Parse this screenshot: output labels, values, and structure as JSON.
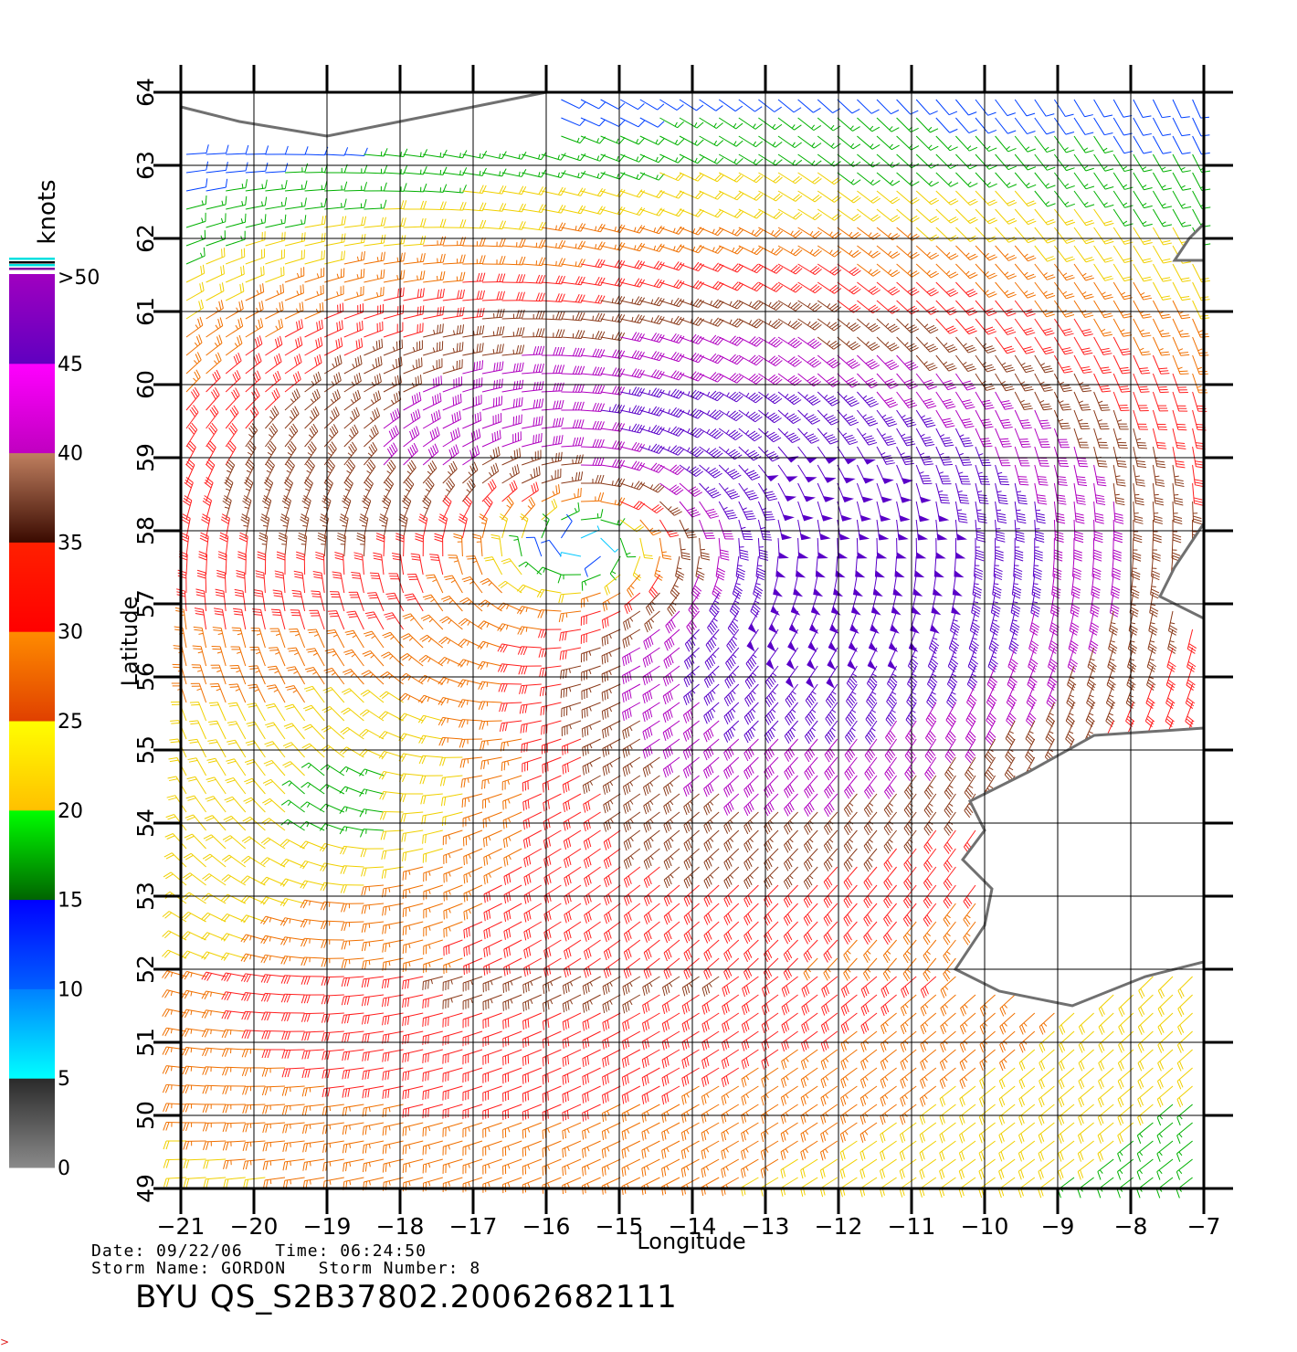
{
  "map": {
    "x_axis": {
      "label": "Longitude",
      "ticks": [
        "−21",
        "−20",
        "−19",
        "−18",
        "−17",
        "−16",
        "−15",
        "−14",
        "−13",
        "−12",
        "−11",
        "−10",
        "−9",
        "−8",
        "−7"
      ],
      "range": [
        -21,
        -7
      ]
    },
    "y_axis": {
      "label": "Latitude",
      "ticks": [
        "49",
        "50",
        "51",
        "52",
        "53",
        "54",
        "55",
        "56",
        "57",
        "58",
        "59",
        "60",
        "61",
        "62",
        "63",
        "64"
      ],
      "range": [
        49,
        64
      ]
    },
    "colorbar": {
      "title": "knots",
      "top_label": ">50",
      "labels": [
        "45",
        "40",
        "35",
        "30",
        "25",
        "20",
        "15",
        "10",
        "5",
        "0"
      ],
      "bands": [
        {
          "from": 0,
          "to": 5,
          "top": "#2a2a2a",
          "bottom": "#8a8a8a"
        },
        {
          "from": 5,
          "to": 10,
          "top": "#0080ff",
          "bottom": "#00ffff"
        },
        {
          "from": 10,
          "to": 15,
          "top": "#0000ff",
          "bottom": "#0060ff"
        },
        {
          "from": 15,
          "to": 20,
          "top": "#00ff00",
          "bottom": "#006400"
        },
        {
          "from": 20,
          "to": 25,
          "top": "#ffff00",
          "bottom": "#ffc000"
        },
        {
          "from": 25,
          "to": 30,
          "top": "#ff8c00",
          "bottom": "#e04000"
        },
        {
          "from": 30,
          "to": 35,
          "top": "#ff2000",
          "bottom": "#ff0000"
        },
        {
          "from": 35,
          "to": 40,
          "top": "#c08060",
          "bottom": "#3a0a00"
        },
        {
          "from": 40,
          "to": 45,
          "top": "#ff00ff",
          "bottom": "#c000c0"
        },
        {
          "from": 45,
          "to": 50,
          "top": "#a000c0",
          "bottom": "#6000c0"
        }
      ]
    },
    "land_color": "#707070",
    "storm_center": {
      "lon": -15.1,
      "lat": 57.9
    }
  },
  "info": {
    "date_label": "Date:",
    "date": "09/22/06",
    "time_label": "Time:",
    "time": "06:24:50",
    "storm_name_label": "Storm Name:",
    "storm_name": "GORDON",
    "storm_number_label": "Storm Number:",
    "storm_number": "8"
  },
  "footer_title": "BYU QS_S2B37802.20062682111",
  "corner_mark": ">"
}
